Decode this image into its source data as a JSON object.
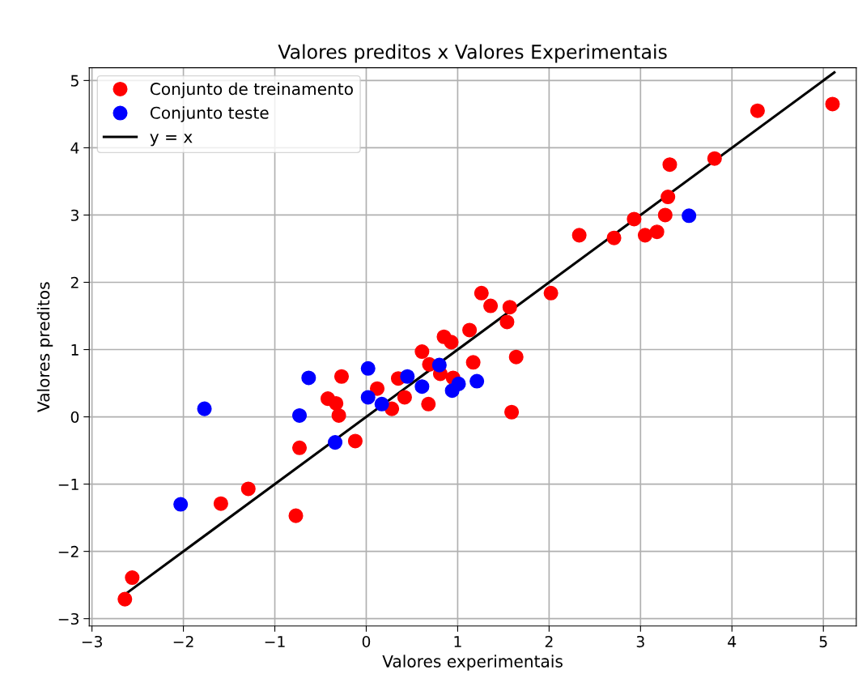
{
  "chart_data": {
    "type": "scatter",
    "title": "Valores preditos x Valores Experimentais",
    "xlabel": "Valores experimentais",
    "ylabel": "Valores preditos",
    "xlim": [
      -3.03,
      5.36
    ],
    "ylim": [
      -3.11,
      5.19
    ],
    "xticks": [
      -3,
      -2,
      -1,
      0,
      1,
      2,
      3,
      4,
      5
    ],
    "yticks": [
      -3,
      -2,
      -1,
      0,
      1,
      2,
      3,
      4,
      5
    ],
    "grid": true,
    "legend": "top left",
    "marker": "circle",
    "series": [
      {
        "name": "Conjunto de treinamento",
        "color": "#ff0000",
        "x": [
          -2.64,
          -2.56,
          -1.59,
          -1.29,
          -0.77,
          -0.73,
          -0.42,
          -0.33,
          -0.3,
          -0.27,
          -0.12,
          0.12,
          0.35,
          0.42,
          0.28,
          0.61,
          0.69,
          0.81,
          0.68,
          0.85,
          0.93,
          0.95,
          1.13,
          1.17,
          1.54,
          1.64,
          1.59,
          1.26,
          1.36,
          1.57,
          2.02,
          2.33,
          2.71,
          2.93,
          3.05,
          3.18,
          3.27,
          3.3,
          3.32,
          3.81,
          4.28,
          5.1
        ],
        "values": [
          -2.71,
          -2.39,
          -1.29,
          -1.07,
          -1.47,
          -0.46,
          0.27,
          0.2,
          0.02,
          0.6,
          -0.36,
          0.42,
          0.57,
          0.29,
          0.12,
          0.97,
          0.78,
          0.64,
          0.19,
          1.19,
          1.11,
          0.58,
          1.29,
          0.81,
          1.41,
          0.89,
          0.07,
          1.84,
          1.65,
          1.63,
          1.84,
          2.7,
          2.66,
          2.94,
          2.7,
          2.75,
          3.0,
          3.27,
          3.75,
          3.84,
          4.55,
          4.65
        ]
      },
      {
        "name": "Conjunto teste",
        "color": "#0000ff",
        "x": [
          3.53,
          -1.77,
          -2.03,
          -0.73,
          -0.34,
          -0.63,
          0.02,
          0.02,
          0.17,
          0.45,
          0.61,
          0.8,
          0.94,
          1.01,
          1.21
        ],
        "values": [
          2.99,
          0.12,
          -1.3,
          0.02,
          -0.38,
          0.58,
          0.72,
          0.29,
          0.19,
          0.6,
          0.45,
          0.77,
          0.39,
          0.49,
          0.53
        ]
      },
      {
        "name": "y = x",
        "type": "line",
        "color": "#000000",
        "marker": "none",
        "line_style": "solid",
        "x": [
          -2.65,
          5.12
        ],
        "values": [
          -2.65,
          5.12
        ]
      }
    ]
  }
}
